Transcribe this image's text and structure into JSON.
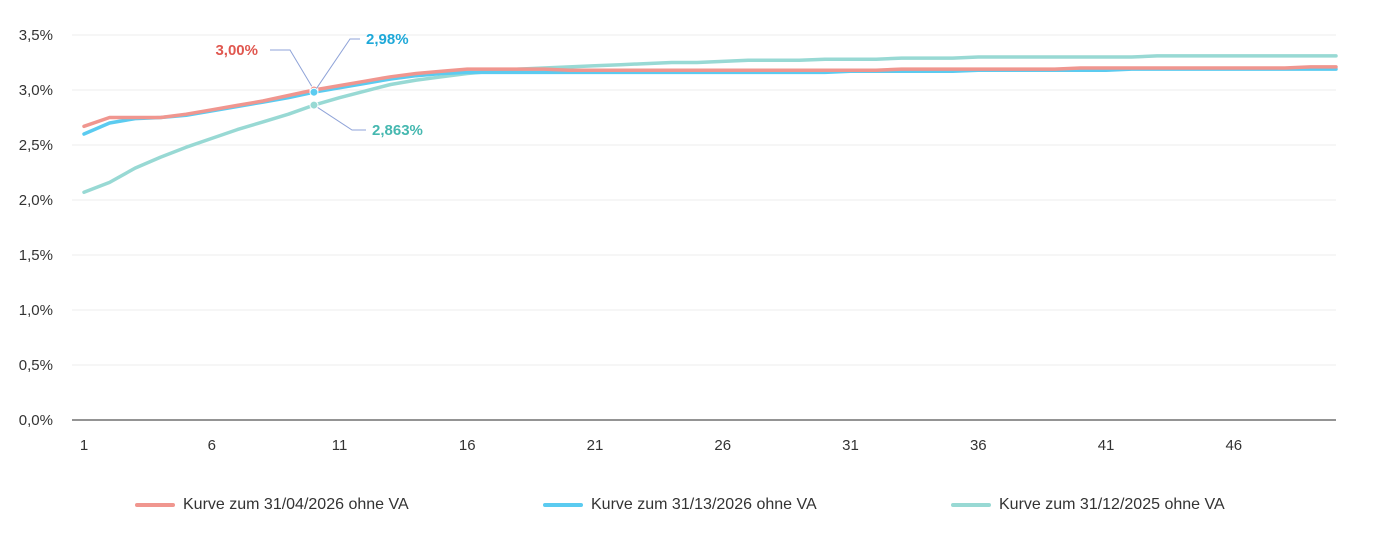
{
  "chart_data": {
    "type": "line",
    "xlim": [
      1,
      50
    ],
    "ylim": [
      0,
      3.5
    ],
    "x_ticks": [
      "1",
      "6",
      "11",
      "16",
      "21",
      "26",
      "31",
      "36",
      "41",
      "46"
    ],
    "y_ticks": [
      "0,0%",
      "0,5%",
      "1,0%",
      "1,5%",
      "2,0%",
      "2,5%",
      "3,0%",
      "3,5%"
    ],
    "grid": "horizontal",
    "legend_position": "bottom",
    "series": [
      {
        "name": "Kurve zum 31/04/2026 ohne VA",
        "color": "#f0968f",
        "x": [
          1,
          2,
          3,
          4,
          5,
          6,
          7,
          8,
          9,
          10,
          11,
          12,
          13,
          14,
          15,
          16,
          17,
          18,
          19,
          20,
          21,
          22,
          23,
          24,
          25,
          26,
          27,
          28,
          29,
          30,
          31,
          32,
          33,
          34,
          35,
          36,
          37,
          38,
          39,
          40,
          41,
          42,
          43,
          44,
          45,
          46,
          47,
          48,
          49,
          50
        ],
        "values": [
          2.67,
          2.75,
          2.75,
          2.75,
          2.78,
          2.82,
          2.86,
          2.9,
          2.95,
          3.0,
          3.04,
          3.08,
          3.12,
          3.15,
          3.17,
          3.19,
          3.19,
          3.19,
          3.19,
          3.18,
          3.18,
          3.18,
          3.18,
          3.18,
          3.18,
          3.18,
          3.18,
          3.18,
          3.18,
          3.18,
          3.18,
          3.18,
          3.19,
          3.19,
          3.19,
          3.19,
          3.19,
          3.19,
          3.19,
          3.2,
          3.2,
          3.2,
          3.2,
          3.2,
          3.2,
          3.2,
          3.2,
          3.2,
          3.21,
          3.21
        ]
      },
      {
        "name": "Kurve zum 31/13/2026 ohne VA",
        "color": "#5bcbf0",
        "x": [
          1,
          2,
          3,
          4,
          5,
          6,
          7,
          8,
          9,
          10,
          11,
          12,
          13,
          14,
          15,
          16,
          17,
          18,
          19,
          20,
          21,
          22,
          23,
          24,
          25,
          26,
          27,
          28,
          29,
          30,
          31,
          32,
          33,
          34,
          35,
          36,
          37,
          38,
          39,
          40,
          41,
          42,
          43,
          44,
          45,
          46,
          47,
          48,
          49,
          50
        ],
        "values": [
          2.6,
          2.7,
          2.74,
          2.75,
          2.77,
          2.81,
          2.85,
          2.89,
          2.93,
          2.98,
          3.02,
          3.06,
          3.1,
          3.13,
          3.15,
          3.16,
          3.16,
          3.16,
          3.16,
          3.16,
          3.16,
          3.16,
          3.16,
          3.16,
          3.16,
          3.16,
          3.16,
          3.16,
          3.16,
          3.16,
          3.17,
          3.17,
          3.17,
          3.17,
          3.17,
          3.18,
          3.18,
          3.18,
          3.18,
          3.18,
          3.18,
          3.19,
          3.19,
          3.19,
          3.19,
          3.19,
          3.19,
          3.19,
          3.19,
          3.19
        ]
      },
      {
        "name": "Kurve zum 31/12/2025 ohne VA",
        "color": "#98d9d4",
        "x": [
          1,
          2,
          3,
          4,
          5,
          6,
          7,
          8,
          9,
          10,
          11,
          12,
          13,
          14,
          15,
          16,
          17,
          18,
          19,
          20,
          21,
          22,
          23,
          24,
          25,
          26,
          27,
          28,
          29,
          30,
          31,
          32,
          33,
          34,
          35,
          36,
          37,
          38,
          39,
          40,
          41,
          42,
          43,
          44,
          45,
          46,
          47,
          48,
          49,
          50
        ],
        "values": [
          2.07,
          2.16,
          2.29,
          2.39,
          2.48,
          2.56,
          2.64,
          2.71,
          2.78,
          2.863,
          2.93,
          2.99,
          3.05,
          3.09,
          3.12,
          3.15,
          3.17,
          3.19,
          3.2,
          3.21,
          3.22,
          3.23,
          3.24,
          3.25,
          3.25,
          3.26,
          3.27,
          3.27,
          3.27,
          3.28,
          3.28,
          3.28,
          3.29,
          3.29,
          3.29,
          3.3,
          3.3,
          3.3,
          3.3,
          3.3,
          3.3,
          3.3,
          3.31,
          3.31,
          3.31,
          3.31,
          3.31,
          3.31,
          3.31,
          3.31
        ]
      }
    ],
    "annotations": [
      {
        "text": "3,00%",
        "x": 10,
        "y": 3.0,
        "color": "#e0574f",
        "series": 0
      },
      {
        "text": "2,98%",
        "x": 10,
        "y": 2.98,
        "color": "#1ea8d8",
        "series": 1
      },
      {
        "text": "2,863%",
        "x": 10,
        "y": 2.863,
        "color": "#46b8b0",
        "series": 2
      }
    ]
  }
}
